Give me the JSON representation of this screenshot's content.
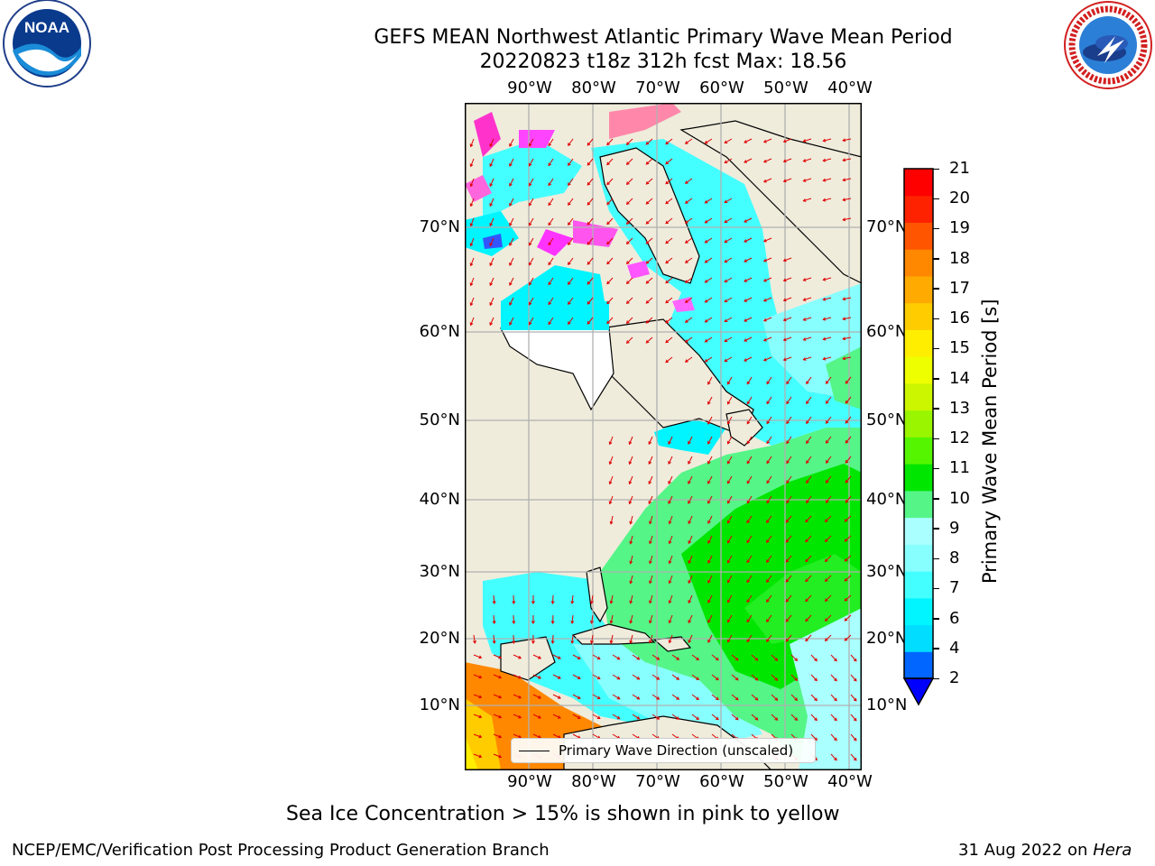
{
  "header": {
    "title_line1": "GEFS MEAN Northwest Atlantic Primary Wave Mean Period",
    "title_line2": "20220823 t18z 312h fcst   Max: 18.56"
  },
  "logos": {
    "noaa": {
      "text": "NOAA",
      "ring_text": "NATIONAL OCEANIC AND ATMOSPHERIC ADMINISTRATION · U.S. DEPARTMENT OF COMMERCE"
    },
    "nws": {
      "ring_text": "NATIONAL WEATHER SERVICE"
    }
  },
  "map": {
    "lon_labels": [
      "90°W",
      "80°W",
      "70°W",
      "60°W",
      "50°W",
      "40°W"
    ],
    "lat_labels": [
      "70°N",
      "60°N",
      "50°N",
      "40°N",
      "30°N",
      "20°N",
      "10°N"
    ],
    "colors": {
      "land": "#efecdc",
      "ice_land": "#ffffff",
      "grid": "#b0b0b0",
      "arrow": "#e00000",
      "coast": "#000000"
    },
    "legend_text": "Primary Wave Direction (unscaled)"
  },
  "colorbar": {
    "label": "Primary Wave Mean Period [s]",
    "ticks": [
      "2",
      "4",
      "6",
      "7",
      "8",
      "9",
      "10",
      "11",
      "12",
      "13",
      "14",
      "15",
      "16",
      "17",
      "18",
      "19",
      "20",
      "21"
    ],
    "colors": [
      "#0066ff",
      "#00ddff",
      "#00f5ff",
      "#44ffff",
      "#88ffff",
      "#aaffff",
      "#55f588",
      "#00e600",
      "#55f500",
      "#99f500",
      "#ccf500",
      "#eeff00",
      "#ffee00",
      "#ffcc00",
      "#ffaa00",
      "#ff8800",
      "#ff5500",
      "#ff2200",
      "#ff0000"
    ],
    "under_color": "#0000ff"
  },
  "footnote": "Sea Ice Concentration > 15% is shown in pink to yellow",
  "footer": {
    "left": "NCEP/EMC/Verification Post Processing Product Generation Branch",
    "right_date": "31 Aug 2022 on",
    "right_host": "Hera"
  }
}
